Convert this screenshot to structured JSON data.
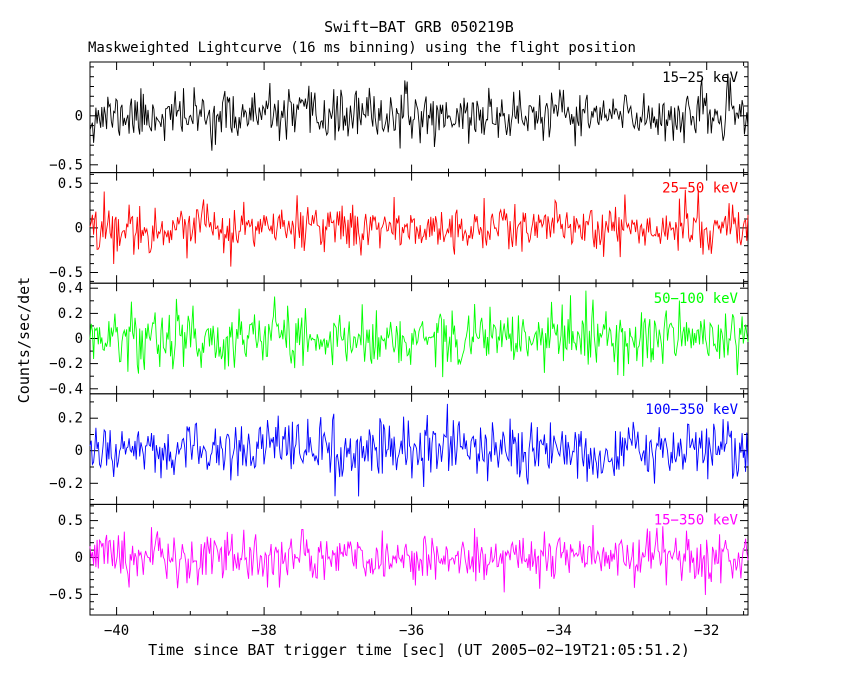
{
  "chart_data": {
    "type": "line",
    "title": "Swift−BAT GRB 050219B",
    "subtitle": "Maskweighted Lightcurve (16 ms binning) using the flight position",
    "xlabel": "Time since BAT trigger time [sec] (UT 2005−02−19T21:05:51.2)",
    "ylabel": "Counts/sec/det",
    "x_range": [
      -40.36,
      -31.44
    ],
    "x_major_ticks": [
      {
        "value": -40,
        "label": "−40"
      },
      {
        "value": -38,
        "label": "−38"
      },
      {
        "value": -36,
        "label": "−36"
      },
      {
        "value": -34,
        "label": "−34"
      },
      {
        "value": -32,
        "label": "−32"
      }
    ],
    "x_minor_step": 0.5,
    "bin_seconds": 0.016,
    "grid": false,
    "legend_position": "in-panel-top-right",
    "panels": [
      {
        "label": "15−25 keV",
        "color": "#000000",
        "ylim": [
          -0.58,
          0.55
        ],
        "yticks": [
          {
            "value": 0,
            "label": "0"
          },
          {
            "value": -0.5,
            "label": "−0.5"
          }
        ],
        "y_minor_step": 0.1,
        "noise_mean": 0,
        "noise_sigma": 0.125,
        "seed": 11
      },
      {
        "label": "25−50 keV",
        "color": "#ff0000",
        "ylim": [
          -0.62,
          0.62
        ],
        "yticks": [
          {
            "value": 0.5,
            "label": "0.5"
          },
          {
            "value": 0,
            "label": "0"
          },
          {
            "value": -0.5,
            "label": "−0.5"
          }
        ],
        "y_minor_step": 0.1,
        "noise_mean": 0,
        "noise_sigma": 0.13,
        "seed": 22
      },
      {
        "label": "50−100 keV",
        "color": "#00ff00",
        "ylim": [
          -0.44,
          0.44
        ],
        "yticks": [
          {
            "value": 0.4,
            "label": "0.4"
          },
          {
            "value": 0.2,
            "label": "0.2"
          },
          {
            "value": 0,
            "label": "0"
          },
          {
            "value": -0.2,
            "label": "−0.2"
          },
          {
            "value": -0.4,
            "label": "−0.4"
          }
        ],
        "y_minor_step": 0.1,
        "noise_mean": 0,
        "noise_sigma": 0.12,
        "seed": 33
      },
      {
        "label": "100−350 keV",
        "color": "#0000ff",
        "ylim": [
          -0.33,
          0.35
        ],
        "yticks": [
          {
            "value": 0.2,
            "label": "0.2"
          },
          {
            "value": 0,
            "label": "0"
          },
          {
            "value": -0.2,
            "label": "−0.2"
          }
        ],
        "y_minor_step": 0.1,
        "noise_mean": 0,
        "noise_sigma": 0.088,
        "seed": 44
      },
      {
        "label": "15−350 keV",
        "color": "#ff00ff",
        "ylim": [
          -0.78,
          0.72
        ],
        "yticks": [
          {
            "value": 0.5,
            "label": "0.5"
          },
          {
            "value": 0,
            "label": "0"
          },
          {
            "value": -0.5,
            "label": "−0.5"
          }
        ],
        "y_minor_step": 0.1,
        "noise_mean": 0,
        "noise_sigma": 0.17,
        "seed": 55
      }
    ],
    "data_note": "Mask-weighted background-subtracted count-rate noise centered on 0 counts/sec/det for each energy band; no burst emission visible in this pre-trigger window."
  }
}
